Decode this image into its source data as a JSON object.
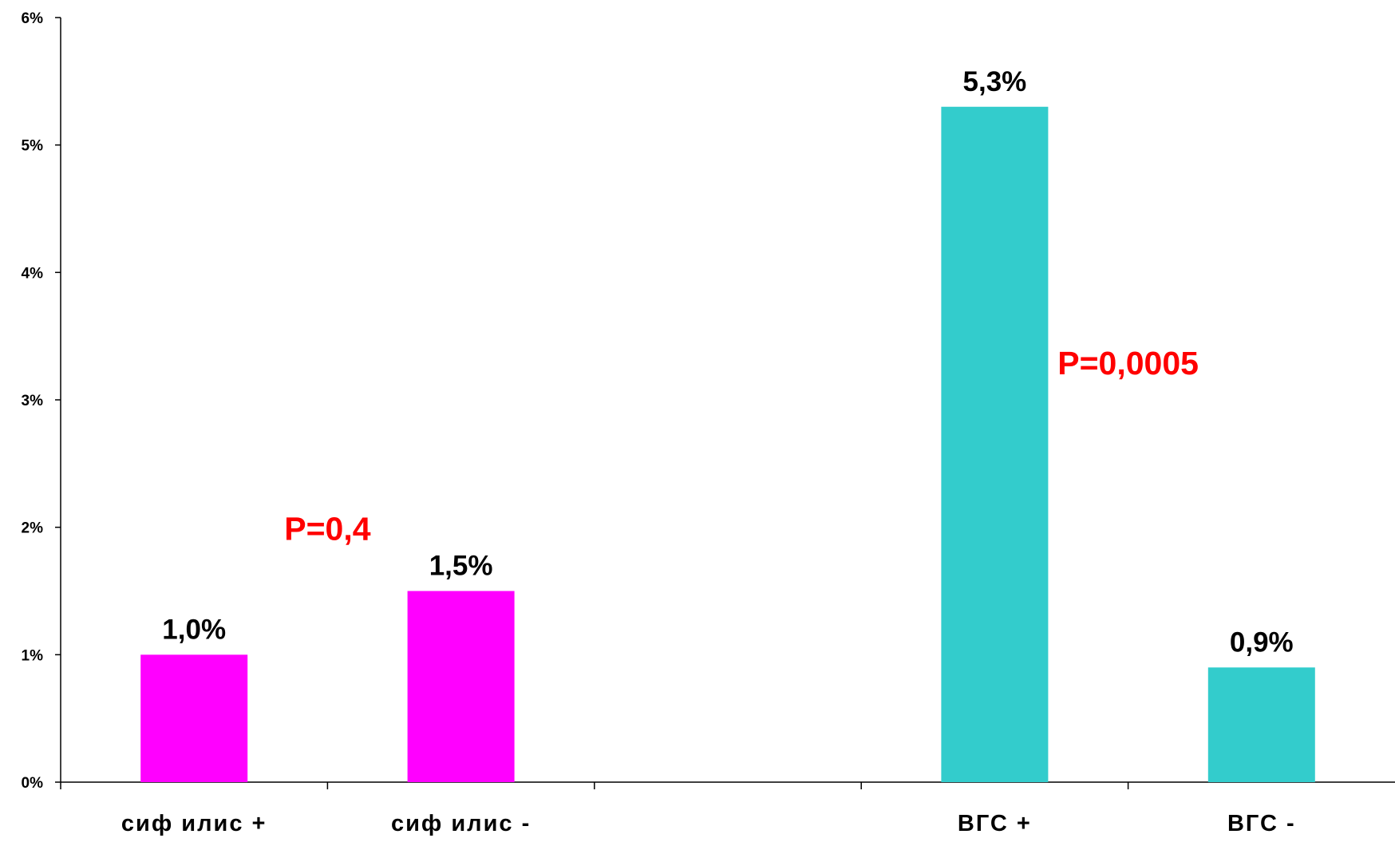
{
  "chart_data": {
    "type": "bar",
    "categories": [
      "сиф илис +",
      "сиф илис -",
      "",
      "ВГС +",
      "ВГС -"
    ],
    "values": [
      1.0,
      1.5,
      null,
      5.3,
      0.9
    ],
    "data_labels": [
      "1,0%",
      "1,5%",
      "",
      "5,3%",
      "0,9%"
    ],
    "bar_colors": [
      "#ff00ff",
      "#ff00ff",
      null,
      "#33cccc",
      "#33cccc"
    ],
    "y_ticks": [
      0,
      1,
      2,
      3,
      4,
      5,
      6
    ],
    "y_tick_labels": [
      "0%",
      "1%",
      "2%",
      "3%",
      "4%",
      "5%",
      "6%"
    ],
    "ylim": [
      0,
      6
    ],
    "grid": false,
    "legend": "none",
    "annotations": [
      {
        "text": "P=0,4",
        "x_between": [
          0,
          1
        ],
        "y": 1.9,
        "color": "#ff0000"
      },
      {
        "text": "P=0,0005",
        "x_between": [
          3,
          4
        ],
        "y": 3.2,
        "color": "#ff0000"
      }
    ]
  }
}
